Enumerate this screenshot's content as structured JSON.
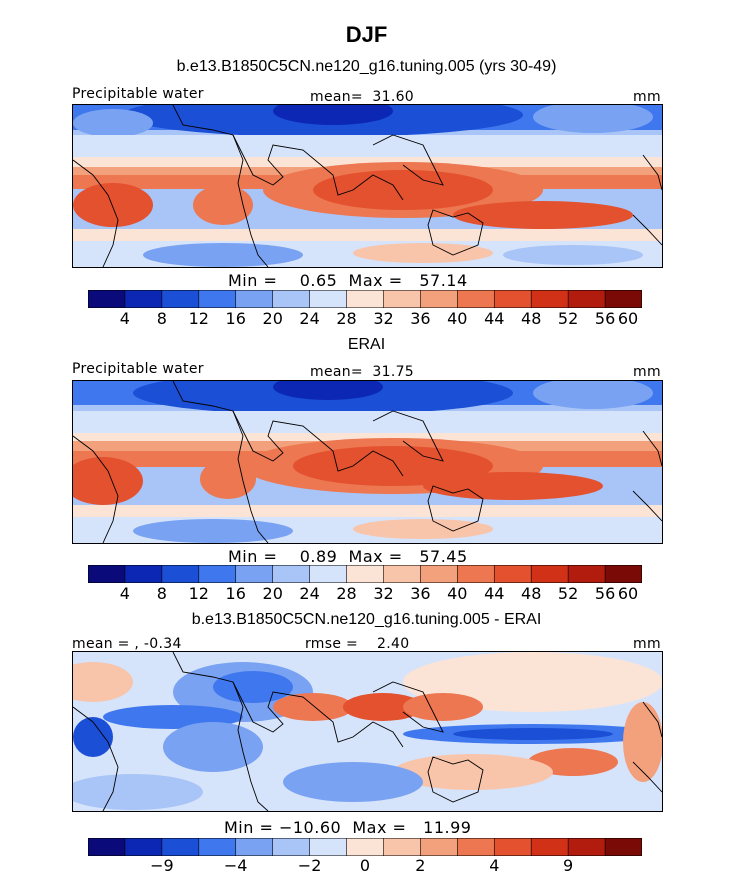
{
  "page": {
    "season": "DJF"
  },
  "colors": [
    "#0a0a7a",
    "#0b27b3",
    "#1a4fd6",
    "#3f78ee",
    "#7aa2f2",
    "#a9c4f6",
    "#d6e4fb",
    "#fbe3d6",
    "#f8c4aa",
    "#f3a07d",
    "#ec7751",
    "#e3512e",
    "#d13116",
    "#b11c0e",
    "#7a0a05"
  ],
  "panels": [
    {
      "title": "b.e13.B1850C5CN.ne120_g16.tuning.005 (yrs 30-49)",
      "left_label": "Precipitable water",
      "center_label": "mean=  31.60",
      "right_label": "mm",
      "minmax": "Min =    0.65  Max =   57.14",
      "colorbar_ticks": [
        "4",
        "8",
        "12",
        "16",
        "20",
        "24",
        "28",
        "32",
        "36",
        "40",
        "44",
        "48",
        "52",
        "56",
        "60"
      ]
    },
    {
      "title": "ERAI",
      "left_label": "Precipitable water",
      "center_label": "mean=  31.75",
      "right_label": "mm",
      "minmax": "Min =    0.89  Max =   57.45",
      "colorbar_ticks": [
        "4",
        "8",
        "12",
        "16",
        "20",
        "24",
        "28",
        "32",
        "36",
        "40",
        "44",
        "48",
        "52",
        "56",
        "60"
      ]
    },
    {
      "title": "b.e13.B1850C5CN.ne120_g16.tuning.005 - ERAI",
      "left_label": "mean = , -0.34",
      "center_label": "rmse =    2.40",
      "right_label": "mm",
      "minmax": "Min = −10.60  Max =   11.99",
      "colorbar_ticks": [
        "−9",
        "−4",
        "−2",
        "0",
        "2",
        "4",
        "9"
      ]
    }
  ]
}
